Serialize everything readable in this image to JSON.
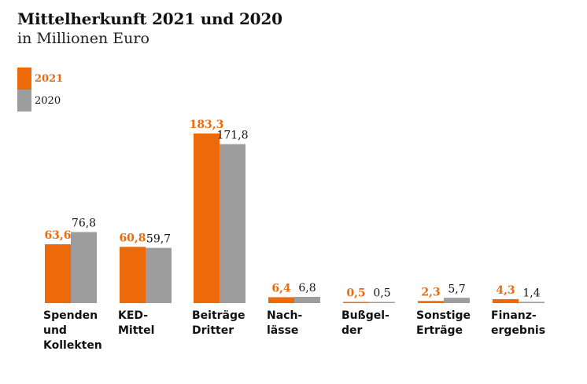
{
  "title": "Mittelherkunft 2021 und 2020",
  "subtitle": "in Millionen Euro",
  "colors": {
    "primary": "#ec6a09",
    "secondary": "#9d9d9d"
  },
  "chart_data": {
    "type": "bar",
    "title": "Mittelherkunft 2021 und 2020",
    "subtitle": "in Millionen Euro",
    "legend_position": "top-left",
    "grid": false,
    "ylim": [
      0,
      183.3
    ],
    "categories": [
      [
        "Spenden",
        "und",
        "Kollekten"
      ],
      [
        "KED-",
        "Mittel"
      ],
      [
        "Beiträge",
        "Dritter"
      ],
      [
        "Nach-",
        "lässe"
      ],
      [
        "Bußgel-",
        "der"
      ],
      [
        "Sonstige",
        "Erträge"
      ],
      [
        "Finanz-",
        "ergebnis"
      ]
    ],
    "series": [
      {
        "name": "2021",
        "values": [
          63.6,
          60.8,
          183.3,
          6.4,
          0.5,
          2.3,
          4.3
        ],
        "labels": [
          "63,6",
          "60,8",
          "183,3",
          "6,4",
          "0,5",
          "2,3",
          "4,3"
        ]
      },
      {
        "name": "2020",
        "values": [
          76.8,
          59.7,
          171.8,
          6.8,
          0.5,
          5.7,
          1.4
        ],
        "labels": [
          "76,8",
          "59,7",
          "171,8",
          "6,8",
          "0,5",
          "5,7",
          "1,4"
        ]
      }
    ]
  }
}
